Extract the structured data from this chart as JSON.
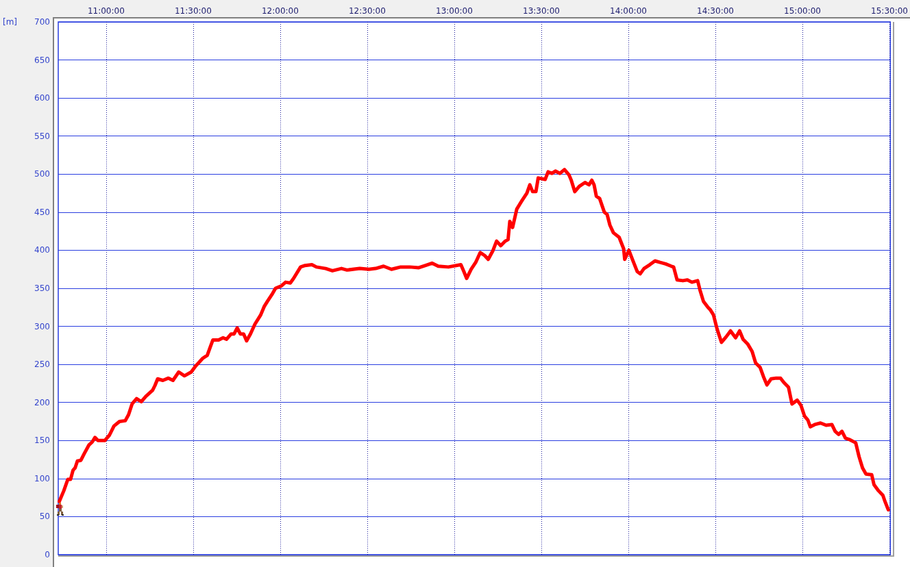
{
  "chart_data": {
    "type": "line",
    "ylabel": "[m]",
    "x": [
      10.731,
      10.757,
      10.78,
      10.796,
      10.81,
      10.822,
      10.835,
      10.855,
      10.875,
      10.901,
      10.92,
      10.936,
      10.953,
      10.992,
      11.019,
      11.045,
      11.077,
      11.11,
      11.129,
      11.149,
      11.175,
      11.202,
      11.228,
      11.267,
      11.28,
      11.296,
      11.326,
      11.358,
      11.384,
      11.417,
      11.45,
      11.489,
      11.515,
      11.555,
      11.581,
      11.613,
      11.646,
      11.672,
      11.692,
      11.718,
      11.735,
      11.753,
      11.771,
      11.79,
      11.807,
      11.829,
      11.855,
      11.888,
      11.908,
      11.927,
      11.953,
      11.973,
      12.006,
      12.031,
      12.058,
      12.077,
      12.117,
      12.143,
      12.182,
      12.208,
      12.261,
      12.3,
      12.352,
      12.384,
      12.457,
      12.509,
      12.548,
      12.594,
      12.639,
      12.692,
      12.744,
      12.796,
      12.835,
      12.872,
      12.908,
      12.966,
      13.038,
      13.055,
      13.071,
      13.097,
      13.123,
      13.149,
      13.175,
      13.195,
      13.221,
      13.243,
      13.267,
      13.293,
      13.309,
      13.319,
      13.335,
      13.359,
      13.391,
      13.417,
      13.434,
      13.45,
      13.469,
      13.482,
      13.522,
      13.539,
      13.561,
      13.581,
      13.607,
      13.633,
      13.659,
      13.672,
      13.692,
      13.718,
      13.751,
      13.774,
      13.79,
      13.803,
      13.816,
      13.835,
      13.862,
      13.878,
      13.894,
      13.914,
      13.947,
      13.973,
      13.979,
      14.003,
      14.025,
      14.051,
      14.068,
      14.09,
      14.123,
      14.153,
      14.182,
      14.214,
      14.247,
      14.26,
      14.28,
      14.313,
      14.339,
      14.365,
      14.398,
      14.411,
      14.431,
      14.457,
      14.47,
      14.489,
      14.509,
      14.535,
      14.561,
      14.587,
      14.616,
      14.639,
      14.659,
      14.685,
      14.711,
      14.731,
      14.757,
      14.776,
      14.796,
      14.82,
      14.849,
      14.874,
      14.894,
      14.92,
      14.94,
      14.97,
      14.992,
      15.012,
      15.031,
      15.045,
      15.071,
      15.104,
      15.136,
      15.169,
      15.188,
      15.208,
      15.227,
      15.247,
      15.273,
      15.306,
      15.325,
      15.345,
      15.365,
      15.398,
      15.411,
      15.437,
      15.462,
      15.474,
      15.493
    ],
    "values": [
      70,
      84,
      99,
      99,
      111,
      114,
      123,
      124,
      133,
      144,
      148,
      154,
      150,
      150,
      157,
      169,
      175,
      176,
      184,
      198,
      205,
      201,
      208,
      216,
      222,
      231,
      229,
      232,
      229,
      240,
      235,
      240,
      248,
      258,
      262,
      282,
      282,
      285,
      283,
      290,
      290,
      298,
      290,
      290,
      281,
      290,
      303,
      315,
      326,
      333,
      342,
      350,
      353,
      358,
      357,
      363,
      378,
      380,
      381,
      378,
      376,
      373,
      376,
      374,
      376,
      375,
      376,
      379,
      375,
      378,
      378,
      377,
      380,
      383,
      379,
      378,
      381,
      372,
      363,
      375,
      384,
      397,
      393,
      388,
      399,
      412,
      406,
      412,
      414,
      438,
      430,
      454,
      466,
      475,
      486,
      477,
      477,
      495,
      493,
      503,
      501,
      504,
      501,
      506,
      499,
      492,
      477,
      484,
      489,
      486,
      492,
      486,
      471,
      468,
      450,
      447,
      433,
      423,
      417,
      402,
      388,
      400,
      387,
      372,
      369,
      376,
      381,
      386,
      384,
      382,
      379,
      378,
      361,
      360,
      361,
      358,
      360,
      348,
      333,
      325,
      322,
      315,
      297,
      279,
      286,
      294,
      285,
      294,
      283,
      277,
      267,
      252,
      246,
      234,
      223,
      231,
      232,
      232,
      226,
      220,
      198,
      203,
      196,
      182,
      177,
      168,
      171,
      173,
      170,
      171,
      162,
      158,
      162,
      153,
      151,
      147,
      129,
      114,
      106,
      105,
      92,
      84,
      78,
      70,
      59
    ],
    "color": "#ff0000",
    "line_style": "solid",
    "xlim": [
      10.725,
      15.505
    ],
    "ylim": [
      0,
      700
    ],
    "xticks": [
      {
        "value": 11,
        "label": "11:00:00"
      },
      {
        "value": 11.5,
        "label": "11:30:00"
      },
      {
        "value": 12,
        "label": "12:00:00"
      },
      {
        "value": 12.5,
        "label": "12:30:00"
      },
      {
        "value": 13,
        "label": "13:00:00"
      },
      {
        "value": 13.5,
        "label": "13:30:00"
      },
      {
        "value": 14,
        "label": "14:00:00"
      },
      {
        "value": 14.5,
        "label": "14:30:00"
      },
      {
        "value": 15,
        "label": "15:00:00"
      },
      {
        "value": 15.5,
        "label": "15:30:00"
      }
    ],
    "yticks": [
      0,
      50,
      100,
      150,
      200,
      250,
      300,
      350,
      400,
      450,
      500,
      550,
      600,
      650,
      700
    ],
    "grid": true
  }
}
